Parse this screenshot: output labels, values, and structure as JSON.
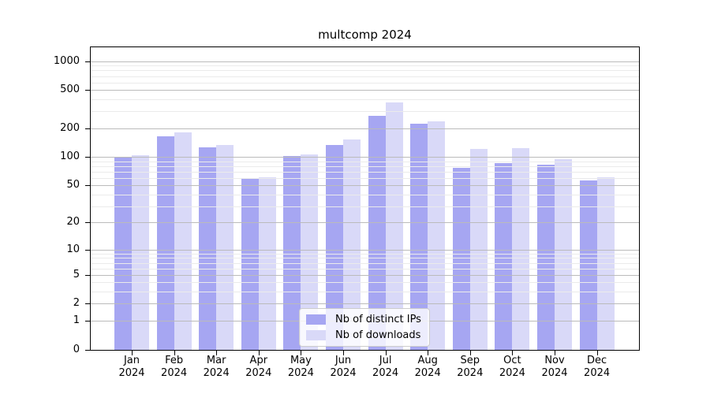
{
  "chart_data": {
    "type": "bar",
    "title": "multcomp 2024",
    "x_categories": [
      {
        "month": "Jan",
        "year": "2024"
      },
      {
        "month": "Feb",
        "year": "2024"
      },
      {
        "month": "Mar",
        "year": "2024"
      },
      {
        "month": "Apr",
        "year": "2024"
      },
      {
        "month": "May",
        "year": "2024"
      },
      {
        "month": "Jun",
        "year": "2024"
      },
      {
        "month": "Jul",
        "year": "2024"
      },
      {
        "month": "Aug",
        "year": "2024"
      },
      {
        "month": "Sep",
        "year": "2024"
      },
      {
        "month": "Oct",
        "year": "2024"
      },
      {
        "month": "Nov",
        "year": "2024"
      },
      {
        "month": "Dec",
        "year": "2024"
      }
    ],
    "series": [
      {
        "name": "Nb of distinct IPs",
        "color": "#a6a6f2",
        "values": [
          99,
          165,
          126,
          59,
          102,
          134,
          270,
          224,
          77,
          86,
          83,
          57
        ]
      },
      {
        "name": "Nb of downloads",
        "color": "#d9d9f8",
        "values": [
          104,
          180,
          134,
          61,
          106,
          152,
          370,
          236,
          121,
          124,
          95,
          61
        ]
      }
    ],
    "y_axis": {
      "scale": "log1p",
      "tick_values": [
        0,
        1,
        2,
        5,
        10,
        20,
        50,
        100,
        200,
        500,
        1000
      ],
      "tick_labels": [
        "0",
        "1",
        "2",
        "5",
        "10",
        "20",
        "50",
        "100",
        "200",
        "500",
        "1000"
      ],
      "minor_grid_values": [
        3,
        4,
        6,
        7,
        8,
        9,
        30,
        40,
        60,
        70,
        80,
        90,
        300,
        400,
        600,
        700,
        800,
        900
      ],
      "range": [
        0,
        1200
      ]
    },
    "grid": {
      "major_color": "#bbbbbb",
      "minor_color": "#ebebeb",
      "grid_on": true
    },
    "legend": {
      "position": "inside-bottom-center",
      "frame": true
    }
  }
}
